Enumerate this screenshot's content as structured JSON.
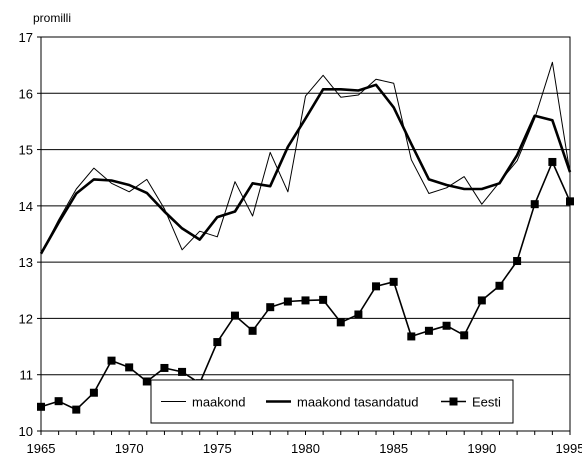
{
  "chart_data": {
    "type": "line",
    "ylabel": "promilli",
    "xlim": [
      1965,
      1995
    ],
    "ylim": [
      10,
      17
    ],
    "xticks": [
      1965,
      1970,
      1975,
      1980,
      1985,
      1990,
      1995
    ],
    "yticks": [
      10,
      11,
      12,
      13,
      14,
      15,
      16,
      17
    ],
    "grid": "horizontal",
    "legend": "bottom-center",
    "x": [
      1965,
      1966,
      1967,
      1968,
      1969,
      1970,
      1971,
      1972,
      1973,
      1974,
      1975,
      1976,
      1977,
      1978,
      1979,
      1980,
      1981,
      1982,
      1983,
      1984,
      1985,
      1986,
      1987,
      1988,
      1989,
      1990,
      1991,
      1992,
      1993,
      1994,
      1995
    ],
    "series": [
      {
        "name": "maakond",
        "style": "thin",
        "values": [
          13.15,
          13.75,
          14.3,
          14.67,
          14.4,
          14.25,
          14.47,
          13.95,
          13.22,
          13.55,
          13.45,
          14.43,
          13.82,
          14.95,
          14.25,
          15.95,
          16.32,
          15.93,
          15.97,
          16.25,
          16.18,
          14.82,
          14.22,
          14.32,
          14.52,
          14.03,
          14.42,
          14.8,
          15.55,
          16.55,
          14.58
        ]
      },
      {
        "name": "maakond tasandatud",
        "style": "thick",
        "values": [
          13.15,
          13.7,
          14.22,
          14.47,
          14.45,
          14.37,
          14.23,
          13.9,
          13.6,
          13.4,
          13.8,
          13.9,
          14.4,
          14.35,
          15.05,
          15.55,
          16.07,
          16.07,
          16.05,
          16.15,
          15.75,
          15.1,
          14.47,
          14.37,
          14.3,
          14.3,
          14.4,
          14.9,
          15.6,
          15.52,
          14.6
        ]
      },
      {
        "name": "Eesti",
        "style": "marker",
        "values": [
          10.43,
          10.53,
          10.38,
          10.68,
          11.25,
          11.13,
          10.88,
          11.12,
          11.05,
          10.85,
          11.58,
          12.05,
          11.78,
          12.2,
          12.3,
          12.32,
          12.33,
          11.93,
          12.07,
          12.57,
          12.65,
          11.68,
          11.78,
          11.87,
          11.7,
          12.32,
          12.58,
          13.02,
          14.03,
          14.78,
          14.08
        ]
      }
    ]
  },
  "colors": {
    "background": "#ffffff",
    "lines": "#000000",
    "grid": "#000000"
  }
}
